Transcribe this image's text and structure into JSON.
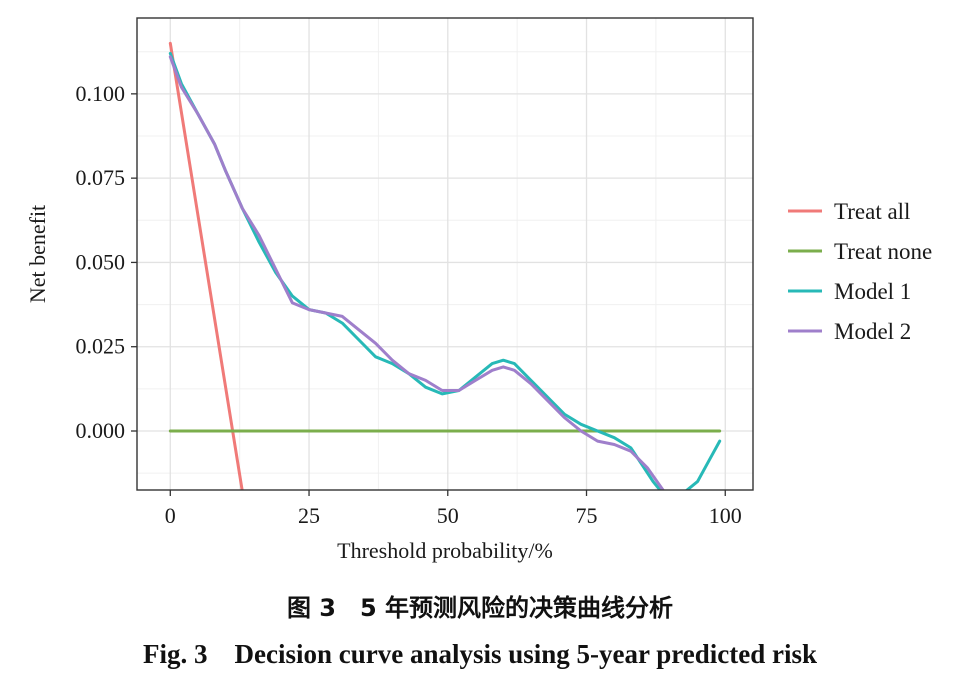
{
  "caption": {
    "cn": "图 3　5 年预测风险的决策曲线分析",
    "en": "Fig. 3　Decision curve analysis using 5-year predicted risk"
  },
  "chart_data": {
    "type": "line",
    "xlabel": "Threshold probability/%",
    "ylabel": "Net benefit",
    "xlim": [
      -6,
      105
    ],
    "ylim": [
      -0.0175,
      0.1225
    ],
    "xticks": [
      0,
      25,
      50,
      75,
      100
    ],
    "xtick_labels": [
      "0",
      "25",
      "50",
      "75",
      "100"
    ],
    "yticks": [
      0.0,
      0.025,
      0.05,
      0.075,
      0.1
    ],
    "ytick_labels": [
      "0.000",
      "0.025",
      "0.050",
      "0.075",
      "0.100"
    ],
    "grid": true,
    "legend_position": "right",
    "series": [
      {
        "name": "Treat all",
        "color": "#F07A78",
        "x": [
          0,
          13
        ],
        "y": [
          0.115,
          -0.018
        ]
      },
      {
        "name": "Treat none",
        "color": "#7BAE4C",
        "x": [
          0,
          99
        ],
        "y": [
          0.0,
          0.0
        ]
      },
      {
        "name": "Model 1",
        "color": "#27B9B7",
        "x": [
          0,
          2,
          5,
          8,
          10,
          13,
          16,
          19,
          22,
          25,
          28,
          31,
          34,
          37,
          40,
          43,
          46,
          49,
          52,
          55,
          58,
          60,
          62,
          65,
          68,
          71,
          74,
          77,
          80,
          83,
          85,
          87,
          88.5,
          92,
          95,
          97,
          99
        ],
        "y": [
          0.112,
          0.103,
          0.094,
          0.085,
          0.077,
          0.066,
          0.056,
          0.047,
          0.04,
          0.036,
          0.035,
          0.032,
          0.027,
          0.022,
          0.02,
          0.017,
          0.013,
          0.011,
          0.012,
          0.016,
          0.02,
          0.021,
          0.02,
          0.015,
          0.01,
          0.005,
          0.002,
          0.0,
          -0.002,
          -0.005,
          -0.01,
          -0.015,
          -0.018,
          -0.019,
          -0.015,
          -0.009,
          -0.003
        ]
      },
      {
        "name": "Model 2",
        "color": "#9F7FCB",
        "x": [
          0,
          2,
          5,
          8,
          10,
          13,
          16,
          19,
          22,
          25,
          28,
          31,
          34,
          37,
          40,
          43,
          46,
          49,
          52,
          55,
          58,
          60,
          62,
          65,
          68,
          71,
          74,
          77,
          80,
          83,
          86,
          89
        ],
        "y": [
          0.111,
          0.102,
          0.094,
          0.085,
          0.077,
          0.066,
          0.058,
          0.048,
          0.038,
          0.036,
          0.035,
          0.034,
          0.03,
          0.026,
          0.021,
          0.017,
          0.015,
          0.012,
          0.012,
          0.015,
          0.018,
          0.019,
          0.018,
          0.014,
          0.009,
          0.004,
          0.0,
          -0.003,
          -0.004,
          -0.006,
          -0.011,
          -0.018
        ]
      }
    ]
  }
}
